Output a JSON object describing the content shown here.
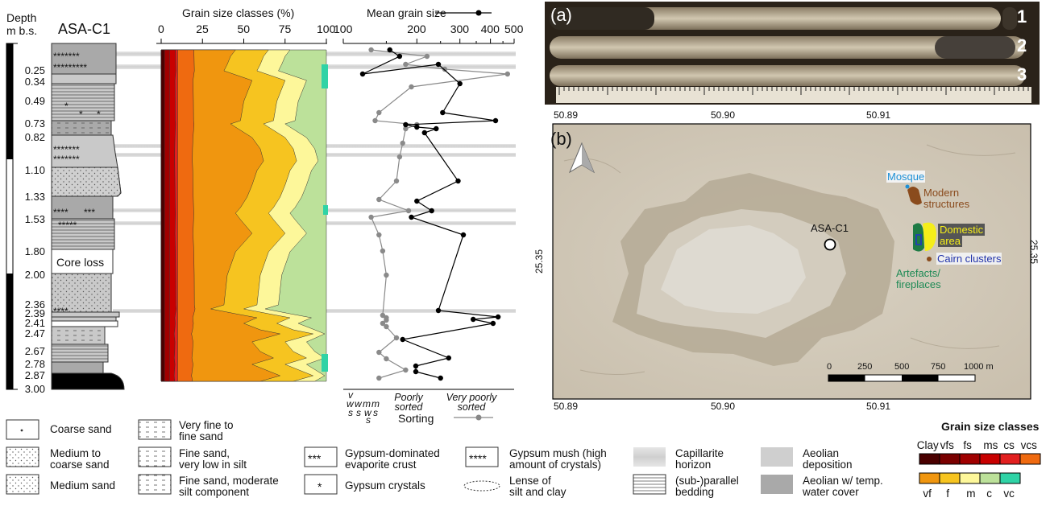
{
  "figure": {
    "log": {
      "depth_title_1": "Depth",
      "depth_title_2": "m b.s.",
      "core_name": "ASA-C1",
      "core_loss_label": "Core loss",
      "depth_labels": [
        "0.25",
        "0.34",
        "0.49",
        "0.73",
        "0.82",
        "1.10",
        "1.33",
        "1.53",
        "1.80",
        "2.00",
        "2.36",
        "2.39",
        "2.41",
        "2.47",
        "2.67",
        "2.78",
        "2.87",
        "3.00"
      ]
    },
    "grain_size": {
      "title": "Grain size classes (%)",
      "ticks": [
        "0",
        "25",
        "50",
        "75",
        "100"
      ]
    },
    "mean_grain": {
      "title": "Mean grain size",
      "ticks": [
        "100",
        "200",
        "300",
        "400",
        "500"
      ],
      "sorting_categories": [
        "v",
        "w",
        "s",
        "w",
        "s",
        "m",
        "w",
        "s",
        "m",
        "s"
      ],
      "sorting_labels": [
        "Poorly sorted",
        "Very poorly sorted"
      ],
      "sorting_legend": "Sorting"
    },
    "panel_a": {
      "label": "(a)",
      "core_numbers": [
        "1",
        "2",
        "3"
      ]
    },
    "panel_b": {
      "label": "(b)",
      "top_ticks": [
        "50.89",
        "50.90",
        "50.91"
      ],
      "bottom_ticks": [
        "50.89",
        "50.90",
        "50.91"
      ],
      "left_tick": "25.35",
      "right_tick": "25.35",
      "site_label": "ASA-C1",
      "annotations": {
        "mosque": "Mosque",
        "modern_1": "Modern",
        "modern_2": "structures",
        "domestic_1": "Domestic",
        "domestic_2": "area",
        "cairn": "Cairn clusters",
        "artefacts_1": "Artefacts/",
        "artefacts_2": "fireplaces"
      },
      "scale_ticks": [
        "0",
        "250",
        "500",
        "750",
        "1000 m"
      ]
    },
    "legend": {
      "coarse_sand": "Coarse sand",
      "medium_coarse_1": "Medium to",
      "medium_coarse_2": "coarse sand",
      "medium_sand": "Medium sand",
      "vf_fine_1": "Very fine to",
      "vf_fine_2": "fine sand",
      "fine_low_silt_1": "Fine sand,",
      "fine_low_silt_2": "very low in silt",
      "fine_mod_silt_1": "Fine sand, moderate",
      "fine_mod_silt_2": "silt component",
      "gypsum_crust_1": "Gypsum-dominated",
      "gypsum_crust_2": "evaporite crust",
      "gypsum_crystals": "Gypsum crystals",
      "gypsum_mush_1": "Gypsum mush (high",
      "gypsum_mush_2": "amount of crystals)",
      "lense_1": "Lense of",
      "lense_2": "silt and clay",
      "capillarite_1": "Capillarite",
      "capillarite_2": "horizon",
      "parallel_1": "(sub-)parallel",
      "parallel_2": "bedding",
      "aeolian_dep_1": "Aeolian",
      "aeolian_dep_2": "deposition",
      "aeolian_water_1": "Aeolian w/ temp.",
      "aeolian_water_2": "water cover",
      "symbol_3star": "***",
      "symbol_1star": "*",
      "symbol_4star": "****",
      "gs_title": "Grain size classes",
      "gs_top_labels": [
        "Clay",
        "vfs",
        "fs",
        "ms",
        "cs",
        "vcs"
      ],
      "gs_bottom_labels": [
        "vf",
        "f",
        "m",
        "c",
        "vc"
      ]
    },
    "colors": {
      "clay": "#4a0000",
      "vfs": "#7a0000",
      "fs": "#a00000",
      "ms": "#c80000",
      "cs": "#e22020",
      "vcs": "#ef6a10",
      "vf": "#f0960f",
      "f": "#f6c420",
      "m": "#fdf79a",
      "c": "#bce19a",
      "vc": "#2fd3a6"
    }
  }
}
